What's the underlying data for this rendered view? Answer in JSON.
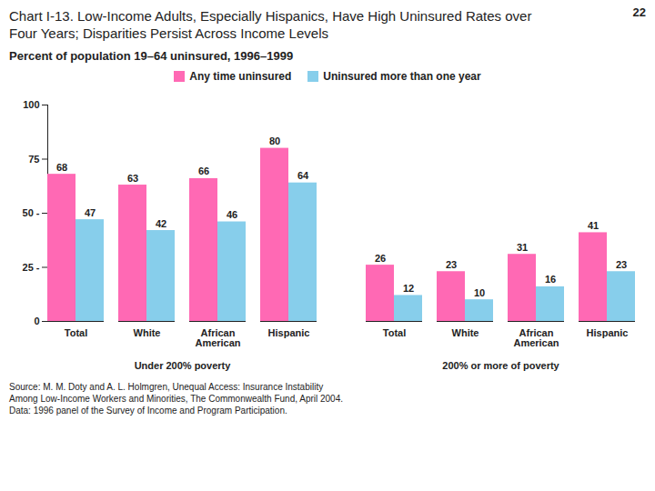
{
  "chart_data": [
    {
      "type": "bar",
      "title": "Chart I-13. Low-Income Adults, Especially Hispanics, Have High Uninsured Rates over\nFour Years; Disparities Persist Across Income Levels",
      "subtitle": "Percent of population 19–64 uninsured, 1996–1999",
      "annotations": [
        "22",
        "Source: M. M. Doty and A. L. Holmgren, Unequal Access: Insurance Instability",
        "Among Low-Income Workers and Minorities, The Commonwealth Fund, April 2004.",
        "Data: 1996 panel of the Survey of Income and Program Participation."
      ],
      "x_label": "Under 200% poverty",
      "categories": [
        "Total",
        "White",
        "African\nAmerican",
        "Hispanic"
      ],
      "series": [
        {
          "name": "Any time uninsured",
          "color": "#ff69b4",
          "values": [
            68,
            63,
            66,
            80
          ]
        },
        {
          "name": "Uninsured more than one year",
          "color": "#87ceeb",
          "values": [
            47,
            42,
            46,
            64
          ]
        }
      ],
      "ylim": [
        0,
        100
      ],
      "yticks": [
        0,
        {
          "value": 25,
          "label": "25 -"
        },
        {
          "value": 50,
          "label": "50 -"
        },
        75,
        100
      ],
      "data_labels": true,
      "legend": "top"
    },
    {
      "type": "bar",
      "x_label": "200% or more of poverty",
      "categories": [
        "Total",
        "White",
        "African\nAmerican",
        "Hispanic"
      ],
      "series": [
        {
          "name": "Any time uninsured",
          "color": "#ff69b4",
          "values": [
            26,
            23,
            31,
            41
          ]
        },
        {
          "name": "Uninsured more than one year",
          "color": "#87ceeb",
          "values": [
            12,
            10,
            16,
            23
          ]
        }
      ],
      "ylim": [
        0,
        100
      ],
      "yticks": [
        0,
        {
          "value": 25,
          "label": "25 -"
        },
        {
          "value": 50,
          "label": "50 -"
        },
        75,
        100
      ],
      "data_labels": true,
      "tick_labels": "x"
    }
  ]
}
